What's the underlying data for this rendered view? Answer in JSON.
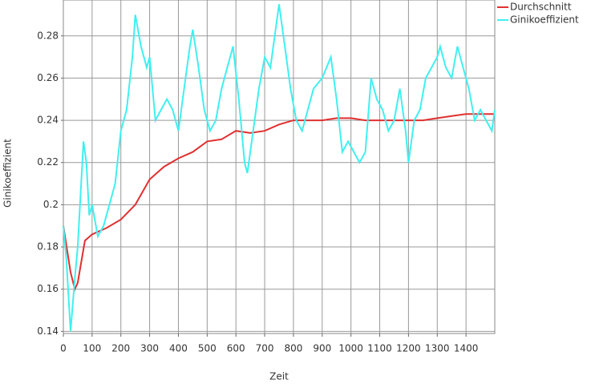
{
  "chart_data": {
    "type": "line",
    "xlabel": "Zeit",
    "ylabel": "Ginikoeffizient",
    "xlim": [
      0,
      1500
    ],
    "ylim": [
      0.139,
      0.297
    ],
    "xticks": [
      0,
      100,
      200,
      300,
      400,
      500,
      600,
      700,
      800,
      900,
      1000,
      1100,
      1200,
      1300,
      1400
    ],
    "yticks": [
      0.14,
      0.16,
      0.18,
      0.2,
      0.22,
      0.24,
      0.26,
      0.28
    ],
    "grid": true,
    "legend": "top-right",
    "series": [
      {
        "name": "Durchschnitt",
        "color": "#e03030",
        "x": [
          0,
          25,
          40,
          50,
          75,
          100,
          150,
          200,
          250,
          300,
          350,
          400,
          450,
          500,
          550,
          600,
          650,
          700,
          750,
          800,
          850,
          900,
          950,
          1000,
          1050,
          1100,
          1150,
          1200,
          1250,
          1300,
          1350,
          1400,
          1450,
          1500
        ],
        "values": [
          0.19,
          0.168,
          0.16,
          0.163,
          0.183,
          0.186,
          0.189,
          0.193,
          0.2,
          0.212,
          0.218,
          0.222,
          0.225,
          0.23,
          0.231,
          0.235,
          0.234,
          0.235,
          0.238,
          0.24,
          0.24,
          0.24,
          0.241,
          0.241,
          0.24,
          0.24,
          0.24,
          0.24,
          0.24,
          0.241,
          0.242,
          0.243,
          0.243,
          0.243
        ]
      },
      {
        "name": "Ginikoeffizient",
        "color": "#40f0f0",
        "x": [
          0,
          10,
          25,
          40,
          50,
          60,
          70,
          80,
          90,
          100,
          120,
          140,
          160,
          180,
          200,
          220,
          240,
          250,
          270,
          290,
          300,
          320,
          340,
          360,
          380,
          400,
          420,
          440,
          450,
          470,
          490,
          510,
          530,
          550,
          570,
          590,
          610,
          630,
          640,
          660,
          680,
          700,
          720,
          740,
          750,
          770,
          790,
          810,
          830,
          850,
          870,
          900,
          930,
          950,
          970,
          990,
          1010,
          1030,
          1050,
          1070,
          1090,
          1110,
          1130,
          1150,
          1170,
          1190,
          1200,
          1220,
          1240,
          1260,
          1280,
          1300,
          1310,
          1330,
          1350,
          1370,
          1390,
          1410,
          1430,
          1450,
          1470,
          1490,
          1500
        ],
        "values": [
          0.19,
          0.175,
          0.14,
          0.165,
          0.18,
          0.205,
          0.23,
          0.22,
          0.195,
          0.2,
          0.185,
          0.19,
          0.2,
          0.21,
          0.235,
          0.245,
          0.27,
          0.29,
          0.275,
          0.265,
          0.27,
          0.24,
          0.245,
          0.25,
          0.245,
          0.235,
          0.255,
          0.275,
          0.283,
          0.265,
          0.245,
          0.235,
          0.24,
          0.255,
          0.265,
          0.275,
          0.25,
          0.22,
          0.215,
          0.235,
          0.255,
          0.27,
          0.265,
          0.285,
          0.295,
          0.275,
          0.255,
          0.24,
          0.235,
          0.245,
          0.255,
          0.26,
          0.27,
          0.25,
          0.225,
          0.23,
          0.225,
          0.22,
          0.225,
          0.26,
          0.25,
          0.245,
          0.235,
          0.24,
          0.255,
          0.235,
          0.22,
          0.24,
          0.245,
          0.26,
          0.265,
          0.27,
          0.275,
          0.265,
          0.26,
          0.275,
          0.265,
          0.255,
          0.24,
          0.245,
          0.24,
          0.235,
          0.245
        ]
      }
    ]
  }
}
